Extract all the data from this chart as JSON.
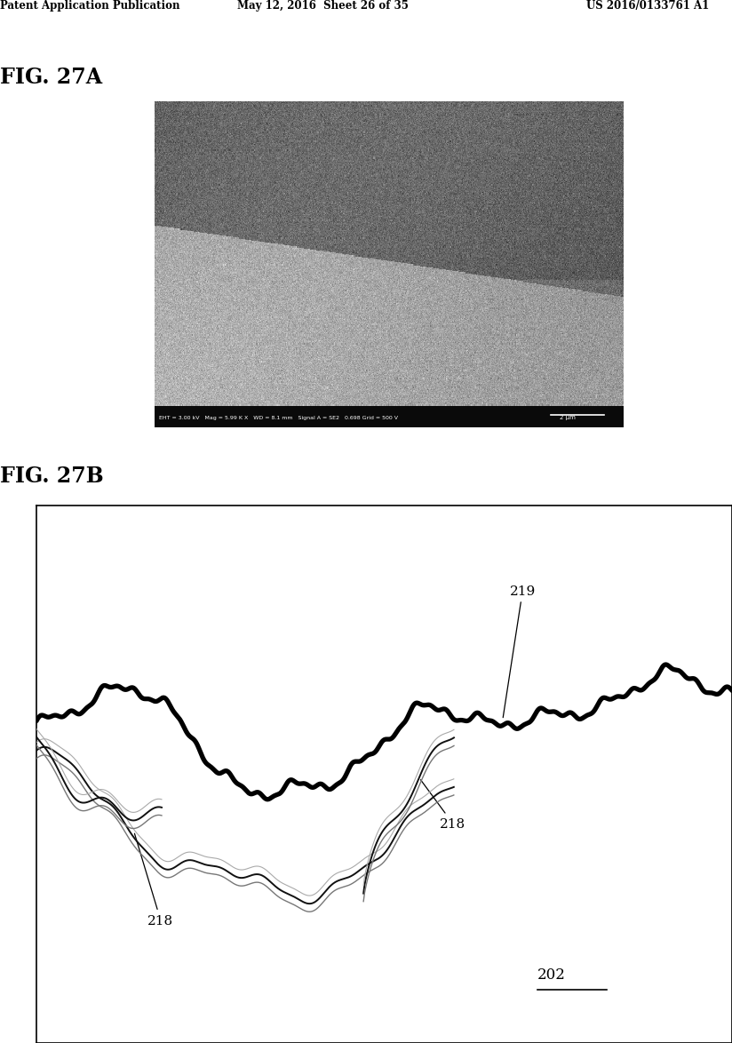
{
  "header_left": "Patent Application Publication",
  "header_mid": "May 12, 2016  Sheet 26 of 35",
  "header_right": "US 2016/0133761 A1",
  "fig_a_label": "FIG. 27A",
  "fig_b_label": "FIG. 27B",
  "label_219": "219",
  "label_218a": "218",
  "label_218b": "218",
  "label_202": "202",
  "background_color": "#ffffff"
}
